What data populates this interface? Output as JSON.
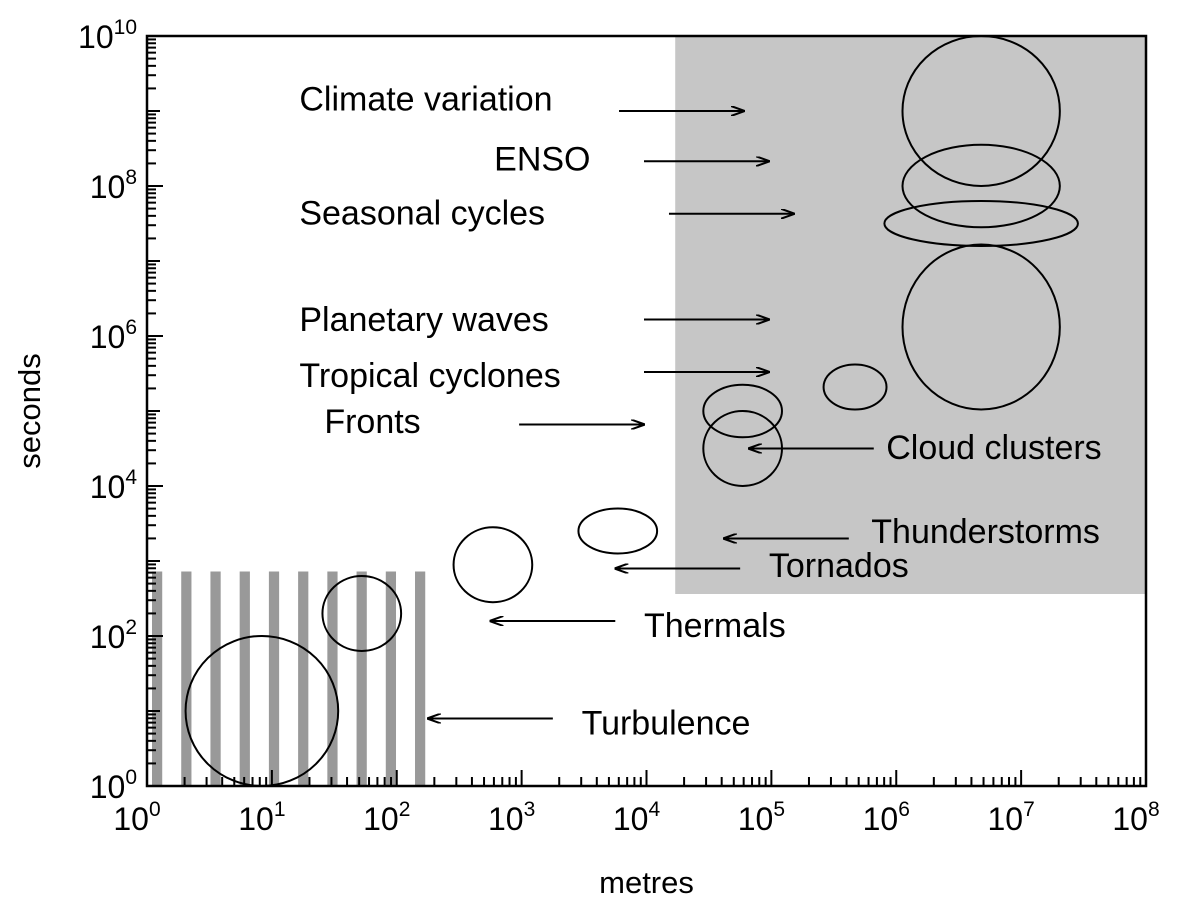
{
  "chart_data": {
    "type": "scatter",
    "xlabel": "metres",
    "ylabel": "seconds",
    "xscale": "log",
    "yscale": "log",
    "xlim_exp": [
      0,
      8
    ],
    "ylim_exp": [
      0,
      10
    ],
    "x_ticks": [
      {
        "base": "10",
        "exp": "0"
      },
      {
        "base": "10",
        "exp": "1"
      },
      {
        "base": "10",
        "exp": "2"
      },
      {
        "base": "10",
        "exp": "3"
      },
      {
        "base": "10",
        "exp": "4"
      },
      {
        "base": "10",
        "exp": "5"
      },
      {
        "base": "10",
        "exp": "6"
      },
      {
        "base": "10",
        "exp": "7"
      },
      {
        "base": "10",
        "exp": "8"
      }
    ],
    "y_ticks": [
      {
        "base": "10",
        "exp": "0",
        "value": 0
      },
      {
        "base": "10",
        "exp": "2",
        "value": 2
      },
      {
        "base": "10",
        "exp": "4",
        "value": 4
      },
      {
        "base": "10",
        "exp": "6",
        "value": 6
      },
      {
        "base": "10",
        "exp": "8",
        "value": 8
      },
      {
        "base": "10",
        "exp": "10",
        "value": 10
      }
    ],
    "grid": false,
    "colors": {
      "shaded_region": "#c6c6c6",
      "hatch_bars": "#999999",
      "lines": "#000000"
    },
    "regions": [
      {
        "kind": "shaded",
        "x_exp": [
          4.23,
          8
        ],
        "y_exp": [
          2.56,
          10
        ]
      },
      {
        "kind": "vertical-stripes",
        "x_exp": [
          0,
          2.27
        ],
        "y_exp": [
          0,
          2.86
        ]
      }
    ],
    "phenomena": [
      {
        "label": "Climate variation",
        "center_exp": [
          6.68,
          9.0
        ],
        "half_width_exp": 1.0,
        "half_height_exp": 1.0,
        "label_at_exp": [
          1.22,
          9.17
        ],
        "arrow_from_exp": [
          3.78,
          9.0
        ],
        "arrow_to_exp": [
          4.78,
          9.0
        ]
      },
      {
        "label": "ENSO",
        "center_exp": [
          6.68,
          8.0
        ],
        "half_width_exp": 1.0,
        "half_height_exp": 0.55,
        "label_at_exp": [
          2.78,
          8.37
        ],
        "arrow_from_exp": [
          3.98,
          8.33
        ],
        "arrow_to_exp": [
          4.98,
          8.33
        ]
      },
      {
        "label": "Seasonal cycles",
        "center_exp": [
          6.68,
          7.5
        ],
        "half_width_exp": 1.23,
        "half_height_exp": 0.3,
        "label_at_exp": [
          1.22,
          7.65
        ],
        "arrow_from_exp": [
          4.18,
          7.63
        ],
        "arrow_to_exp": [
          5.18,
          7.63
        ]
      },
      {
        "label": "Planetary waves",
        "center_exp": [
          6.68,
          6.12
        ],
        "half_width_exp": 1.0,
        "half_height_exp": 1.1,
        "label_at_exp": [
          1.22,
          6.23
        ],
        "arrow_from_exp": [
          3.98,
          6.22
        ],
        "arrow_to_exp": [
          4.98,
          6.22
        ]
      },
      {
        "label": "Tropical cyclones",
        "center_exp": [
          5.67,
          5.32
        ],
        "half_width_exp": 0.4,
        "half_height_exp": 0.3,
        "label_at_exp": [
          1.22,
          5.48
        ],
        "arrow_from_exp": [
          3.98,
          5.52
        ],
        "arrow_to_exp": [
          4.98,
          5.52
        ]
      },
      {
        "label": "Fronts",
        "center_exp": [
          4.77,
          5.0
        ],
        "half_width_exp": 0.5,
        "half_height_exp": 0.35,
        "label_at_exp": [
          1.42,
          4.87
        ],
        "arrow_from_exp": [
          2.98,
          4.82
        ],
        "arrow_to_exp": [
          3.98,
          4.82
        ]
      },
      {
        "label": "Cloud clusters",
        "center_exp": [
          4.77,
          4.5
        ],
        "half_width_exp": 0.5,
        "half_height_exp": 0.5,
        "label_at_exp": [
          5.92,
          4.52
        ],
        "arrow_from_exp": [
          5.82,
          4.5
        ],
        "arrow_to_exp": [
          4.82,
          4.5
        ]
      },
      {
        "label": "Thunderstorms",
        "center_exp": [
          3.77,
          3.4
        ],
        "half_width_exp": 0.5,
        "half_height_exp": 0.3,
        "label_at_exp": [
          5.8,
          3.4
        ],
        "arrow_from_exp": [
          5.62,
          3.3
        ],
        "arrow_to_exp": [
          4.62,
          3.3
        ]
      },
      {
        "label": "Tornados",
        "center_exp": [
          2.77,
          2.95
        ],
        "half_width_exp": 0.5,
        "half_height_exp": 0.5,
        "label_at_exp": [
          4.98,
          2.95
        ],
        "arrow_from_exp": [
          4.75,
          2.9
        ],
        "arrow_to_exp": [
          3.75,
          2.9
        ]
      },
      {
        "label": "Thermals",
        "center_exp": [
          1.72,
          2.3
        ],
        "half_width_exp": 0.5,
        "half_height_exp": 0.5,
        "label_at_exp": [
          3.98,
          2.15
        ],
        "arrow_from_exp": [
          3.75,
          2.2
        ],
        "arrow_to_exp": [
          2.75,
          2.2
        ]
      },
      {
        "label": "Turbulence",
        "center_exp": [
          0.92,
          1.0
        ],
        "half_width_exp": 0.97,
        "half_height_exp": 1.0,
        "label_at_exp": [
          3.48,
          0.85
        ],
        "arrow_from_exp": [
          3.25,
          0.9
        ],
        "arrow_to_exp": [
          2.25,
          0.9
        ]
      }
    ]
  }
}
